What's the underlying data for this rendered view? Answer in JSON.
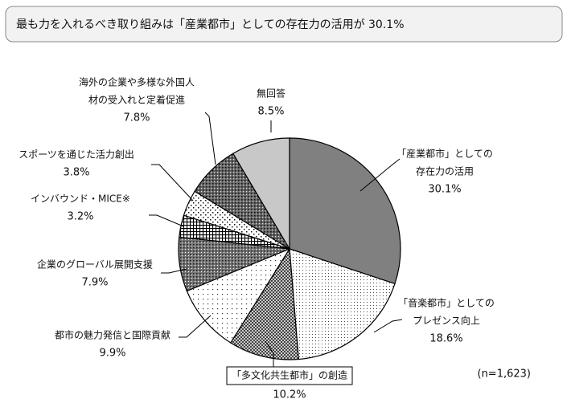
{
  "chart_data": {
    "type": "pie",
    "title": "最も力を入れるべき取り組みは「産業都市」としての存在力の活用が 30.1%",
    "categories": [
      [
        "「産業都市」としての",
        "存在力の活用"
      ],
      [
        "「音楽都市」としての",
        "プレゼンス向上"
      ],
      [
        "「多文化共生都市」の創造"
      ],
      [
        "都市の魅力発信と国際貢献"
      ],
      [
        "企業のグローバル展開支援"
      ],
      [
        "インバウンド・MICE※"
      ],
      [
        "スポーツを通じた活力創出"
      ],
      [
        "海外の企業や多様な外国人",
        "材の受入れと定着促進"
      ],
      [
        "無回答"
      ]
    ],
    "values": [
      30.1,
      18.6,
      10.2,
      9.9,
      7.9,
      3.2,
      3.8,
      7.8,
      8.5
    ],
    "value_labels": [
      "30.1%",
      "18.6%",
      "10.2%",
      "9.9%",
      "7.9%",
      "3.2%",
      "3.8%",
      "7.8%",
      "8.5%"
    ],
    "note": "(n=1,623)"
  }
}
